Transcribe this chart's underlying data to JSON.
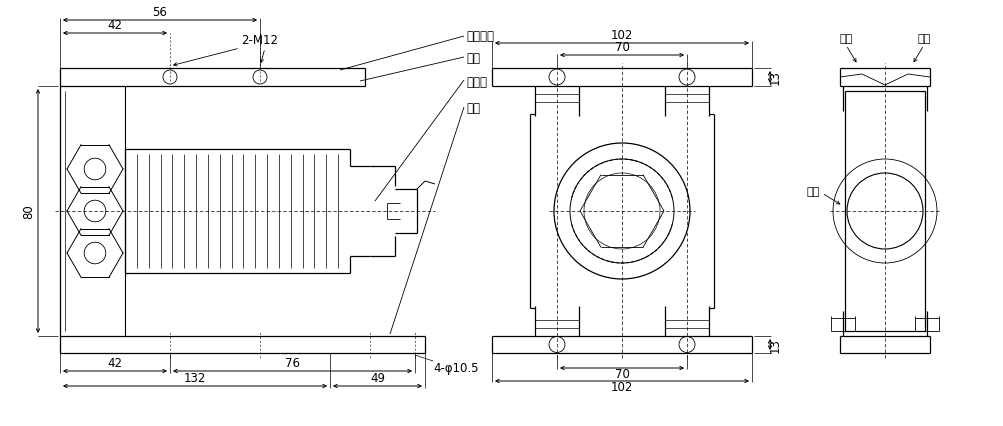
{
  "bg_color": "#ffffff",
  "lc": "#000000",
  "lw": 0.9,
  "fs": 8.5,
  "labels": {
    "zhi_cheng": "支撐螺栓",
    "ding_ban": "頂板",
    "chuan_gan_qi": "传感器",
    "di_ban": "底板",
    "m12": "2-M12",
    "phi": "4-φ10.5",
    "jx1": "间隙",
    "jx2": "间隙",
    "jx3": "间隙"
  },
  "dims": {
    "d56": "56",
    "d42t": "42",
    "d42b": "42",
    "d76": "76",
    "d132": "132",
    "d49": "49",
    "d80": "80",
    "d102t": "102",
    "d70t": "70",
    "d13t": "13",
    "d13b": "13",
    "d70b": "70",
    "d102b": "102"
  }
}
